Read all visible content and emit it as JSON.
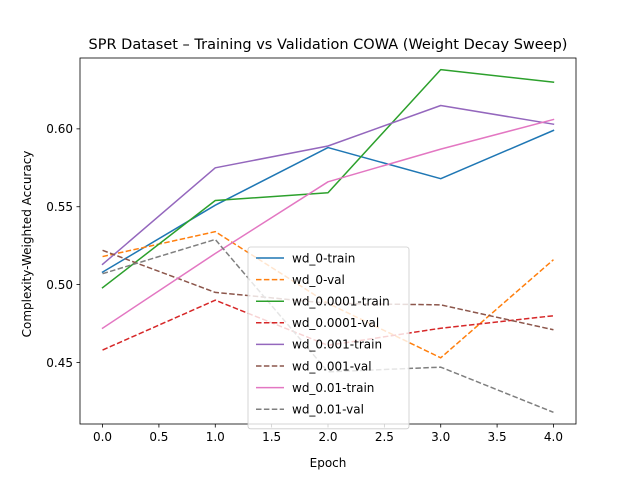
{
  "chart_data": {
    "type": "line",
    "title": "SPR Dataset – Training vs Validation COWA (Weight Decay Sweep)",
    "xlabel": "Epoch",
    "ylabel": "Complexity-Weighted Accuracy",
    "x": [
      0,
      1,
      2,
      3,
      4
    ],
    "xlim": [
      -0.2,
      4.2
    ],
    "ylim": [
      0.4105,
      0.6455
    ],
    "xticks": [
      0.0,
      0.5,
      1.0,
      1.5,
      2.0,
      2.5,
      3.0,
      3.5,
      4.0
    ],
    "xtick_labels": [
      "0.0",
      "0.5",
      "1.0",
      "1.5",
      "2.0",
      "2.5",
      "3.0",
      "3.5",
      "4.0"
    ],
    "yticks": [
      0.45,
      0.5,
      0.55,
      0.6
    ],
    "ytick_labels": [
      "0.45",
      "0.50",
      "0.55",
      "0.60"
    ],
    "grid": false,
    "legend_position": "lower-center",
    "series": [
      {
        "name": "wd_0-train",
        "color": "#1f77b4",
        "dash": "solid",
        "values": [
          0.508,
          0.551,
          0.588,
          0.568,
          0.599
        ]
      },
      {
        "name": "wd_0-val",
        "color": "#ff7f0e",
        "dash": "dashed",
        "values": [
          0.518,
          0.534,
          0.488,
          0.453,
          0.516
        ]
      },
      {
        "name": "wd_0.0001-train",
        "color": "#2ca02c",
        "dash": "solid",
        "values": [
          0.498,
          0.554,
          0.559,
          0.638,
          0.63
        ]
      },
      {
        "name": "wd_0.0001-val",
        "color": "#d62728",
        "dash": "dashed",
        "values": [
          0.458,
          0.49,
          0.461,
          0.472,
          0.48
        ]
      },
      {
        "name": "wd_0.001-train",
        "color": "#9467bd",
        "dash": "solid",
        "values": [
          0.513,
          0.575,
          0.589,
          0.615,
          0.603
        ]
      },
      {
        "name": "wd_0.001-val",
        "color": "#8c564b",
        "dash": "dashed",
        "values": [
          0.522,
          0.495,
          0.488,
          0.487,
          0.471
        ]
      },
      {
        "name": "wd_0.01-train",
        "color": "#e377c2",
        "dash": "solid",
        "values": [
          0.472,
          0.52,
          0.566,
          0.587,
          0.606
        ]
      },
      {
        "name": "wd_0.01-val",
        "color": "#7f7f7f",
        "dash": "dashed",
        "values": [
          0.507,
          0.529,
          0.444,
          0.447,
          0.418
        ]
      }
    ]
  }
}
